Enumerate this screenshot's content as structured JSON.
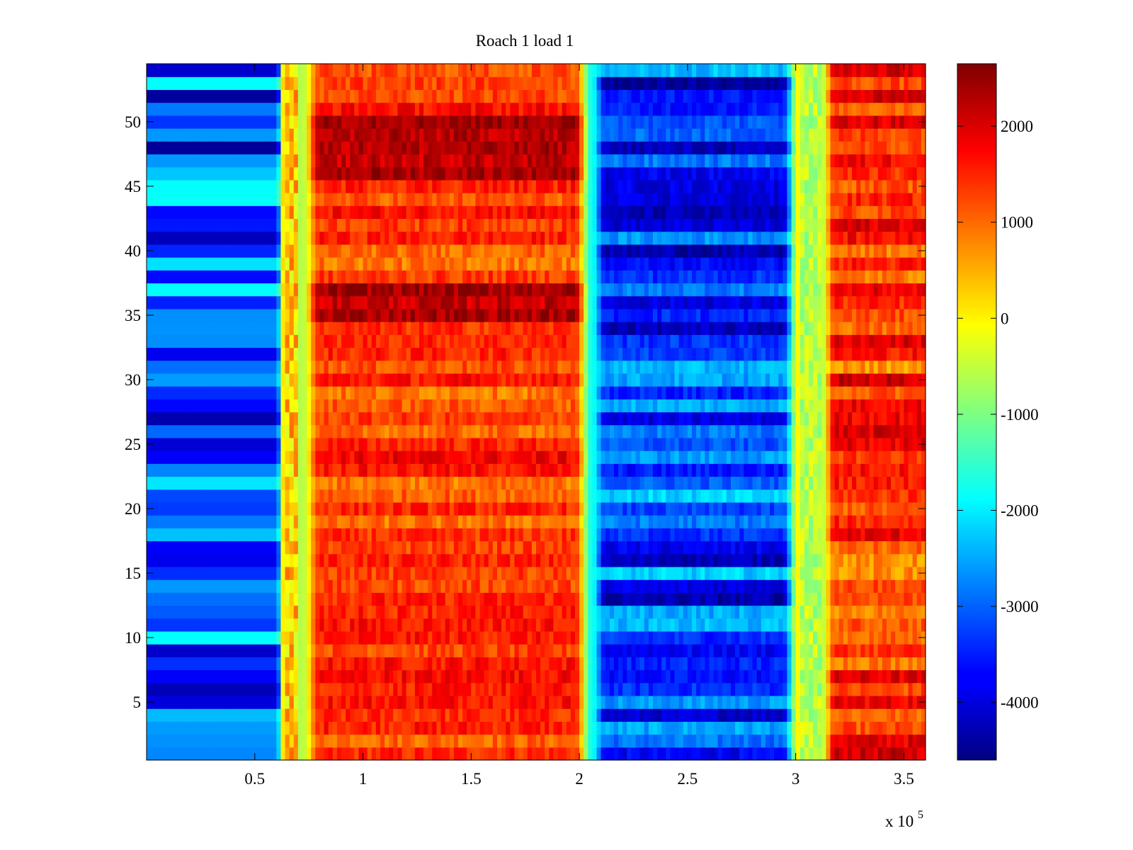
{
  "chart_data": {
    "type": "heatmap",
    "title": "Roach 1 load 1",
    "xlabel": "",
    "ylabel": "",
    "x_multiplier_label": {
      "base": "x 10",
      "exponent": "5"
    },
    "xlim": [
      0,
      360000
    ],
    "ylim": [
      0.5,
      54.5
    ],
    "x_ticks": [
      50000,
      100000,
      150000,
      200000,
      250000,
      300000,
      350000
    ],
    "x_tick_labels": [
      "0.5",
      "1",
      "1.5",
      "2",
      "2.5",
      "3",
      "3.5"
    ],
    "y_ticks": [
      5,
      10,
      15,
      20,
      25,
      30,
      35,
      40,
      45,
      50
    ],
    "y_tick_labels": [
      "5",
      "10",
      "15",
      "20",
      "25",
      "30",
      "35",
      "40",
      "45",
      "50"
    ],
    "colormap": "jet",
    "clim": [
      -4600,
      2650
    ],
    "colorbar": {
      "ticks": [
        2000,
        1000,
        0,
        -1000,
        -2000,
        -3000,
        -4000
      ],
      "tick_labels": [
        "2000",
        "1000",
        "0",
        "-1000",
        "-2000",
        "-3000",
        "-4000"
      ]
    },
    "n_rows": 54,
    "x_segments": [
      {
        "x": [
          0,
          62000
        ],
        "desc": "low"
      },
      {
        "x": [
          62000,
          78000
        ],
        "desc": "transition"
      },
      {
        "x": [
          78000,
          200000
        ],
        "desc": "high"
      },
      {
        "x": [
          200000,
          296000
        ],
        "desc": "low"
      },
      {
        "x": [
          296000,
          314000
        ],
        "desc": "transition"
      },
      {
        "x": [
          314000,
          360000
        ],
        "desc": "high"
      }
    ],
    "grid": false,
    "legend": "none"
  }
}
